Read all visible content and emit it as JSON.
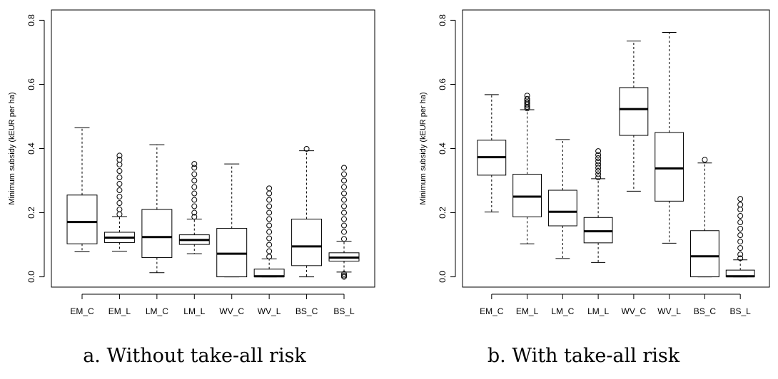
{
  "chart_data": [
    {
      "type": "boxplot",
      "caption": "a. Without take-all risk",
      "ylabel": "Minimum subsidy (kEUR per ha)",
      "xlabel": "",
      "ylim": [
        0,
        0.8
      ],
      "yticks": [
        "0.0",
        "0.2",
        "0.4",
        "0.6",
        "0.8"
      ],
      "categories": [
        "EM_C",
        "EM_L",
        "LM_C",
        "LM_L",
        "WV_C",
        "WV_L",
        "BS_C",
        "BS_L"
      ],
      "boxes": [
        {
          "whisker_low": 0.078,
          "q1": 0.103,
          "median": 0.171,
          "q3": 0.255,
          "whisker_high": 0.465,
          "outliers": []
        },
        {
          "whisker_low": 0.08,
          "q1": 0.107,
          "median": 0.122,
          "q3": 0.139,
          "whisker_high": 0.188,
          "outliers": [
            0.195,
            0.21,
            0.23,
            0.25,
            0.27,
            0.29,
            0.31,
            0.33,
            0.35,
            0.365,
            0.378
          ]
        },
        {
          "whisker_low": 0.013,
          "q1": 0.06,
          "median": 0.124,
          "q3": 0.21,
          "whisker_high": 0.412,
          "outliers": []
        },
        {
          "whisker_low": 0.072,
          "q1": 0.101,
          "median": 0.115,
          "q3": 0.131,
          "whisker_high": 0.18,
          "outliers": [
            0.187,
            0.2,
            0.22,
            0.24,
            0.26,
            0.28,
            0.3,
            0.32,
            0.34,
            0.352
          ]
        },
        {
          "whisker_low": 0.0,
          "q1": 0.0,
          "median": 0.072,
          "q3": 0.151,
          "whisker_high": 0.352,
          "outliers": []
        },
        {
          "whisker_low": 0.0,
          "q1": 0.0,
          "median": 0.002,
          "q3": 0.024,
          "whisker_high": 0.056,
          "outliers": [
            0.063,
            0.08,
            0.1,
            0.12,
            0.14,
            0.16,
            0.18,
            0.2,
            0.22,
            0.24,
            0.26,
            0.276
          ]
        },
        {
          "whisker_low": 0.0,
          "q1": 0.035,
          "median": 0.095,
          "q3": 0.18,
          "whisker_high": 0.393,
          "outliers": [
            0.399
          ]
        },
        {
          "whisker_low": 0.015,
          "q1": 0.049,
          "median": 0.06,
          "q3": 0.075,
          "whisker_high": 0.111,
          "outliers": [
            0.0,
            0.004,
            0.009,
            0.118,
            0.14,
            0.16,
            0.18,
            0.2,
            0.22,
            0.24,
            0.26,
            0.28,
            0.3,
            0.32,
            0.34
          ]
        }
      ]
    },
    {
      "type": "boxplot",
      "caption": "b. With take-all risk",
      "ylabel": "Minimum subsidy (kEUR per ha)",
      "xlabel": "",
      "ylim": [
        0,
        0.8
      ],
      "yticks": [
        "0.0",
        "0.2",
        "0.4",
        "0.6",
        "0.8"
      ],
      "categories": [
        "EM_C",
        "EM_L",
        "LM_C",
        "LM_L",
        "WV_C",
        "WV_L",
        "BS_C",
        "BS_L"
      ],
      "boxes": [
        {
          "whisker_low": 0.202,
          "q1": 0.317,
          "median": 0.373,
          "q3": 0.426,
          "whisker_high": 0.568,
          "outliers": []
        },
        {
          "whisker_low": 0.103,
          "q1": 0.187,
          "median": 0.25,
          "q3": 0.32,
          "whisker_high": 0.521,
          "outliers": [
            0.525,
            0.53,
            0.535,
            0.54,
            0.545,
            0.55,
            0.555,
            0.565
          ]
        },
        {
          "whisker_low": 0.057,
          "q1": 0.159,
          "median": 0.203,
          "q3": 0.27,
          "whisker_high": 0.428,
          "outliers": []
        },
        {
          "whisker_low": 0.045,
          "q1": 0.106,
          "median": 0.142,
          "q3": 0.185,
          "whisker_high": 0.306,
          "outliers": [
            0.31,
            0.32,
            0.33,
            0.34,
            0.35,
            0.36,
            0.37,
            0.38,
            0.392
          ]
        },
        {
          "whisker_low": 0.267,
          "q1": 0.441,
          "median": 0.523,
          "q3": 0.59,
          "whisker_high": 0.735,
          "outliers": []
        },
        {
          "whisker_low": 0.105,
          "q1": 0.236,
          "median": 0.338,
          "q3": 0.45,
          "whisker_high": 0.762,
          "outliers": []
        },
        {
          "whisker_low": 0.0,
          "q1": 0.0,
          "median": 0.064,
          "q3": 0.144,
          "whisker_high": 0.355,
          "outliers": [
            0.365
          ]
        },
        {
          "whisker_low": 0.0,
          "q1": 0.0,
          "median": 0.002,
          "q3": 0.021,
          "whisker_high": 0.053,
          "outliers": [
            0.058,
            0.07,
            0.09,
            0.11,
            0.13,
            0.15,
            0.17,
            0.19,
            0.21,
            0.225,
            0.243
          ]
        }
      ]
    }
  ]
}
